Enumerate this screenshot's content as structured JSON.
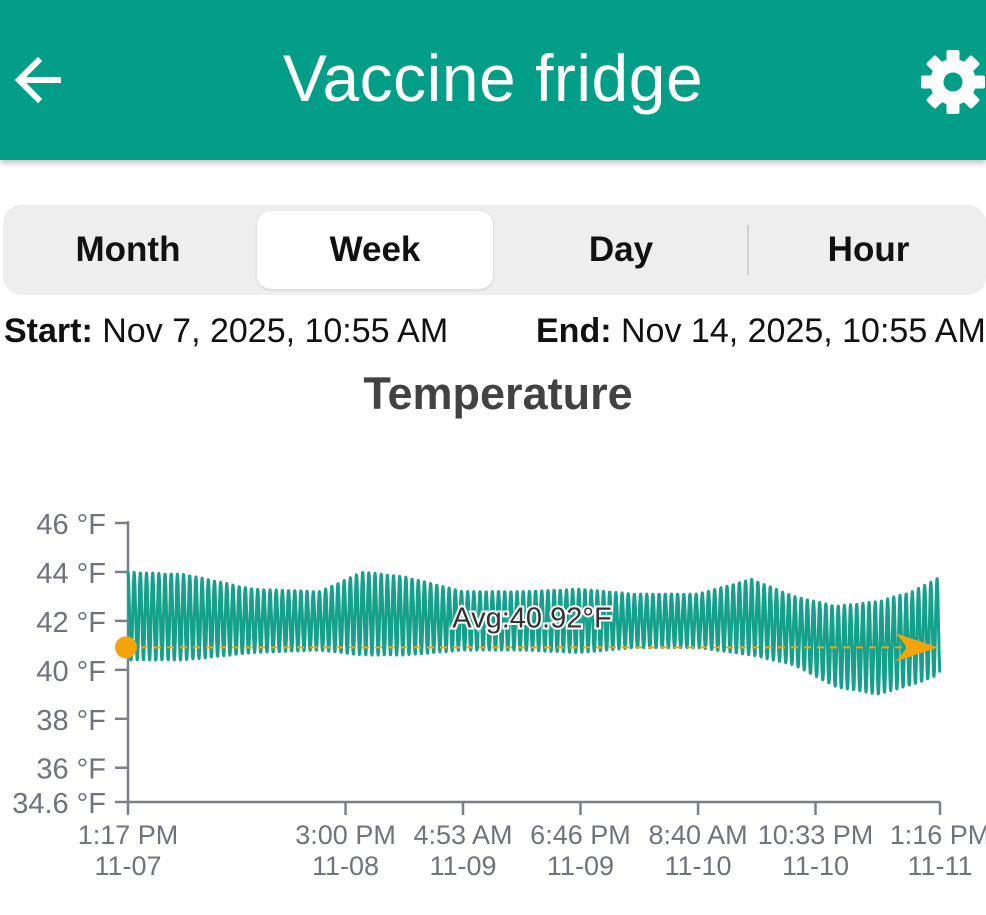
{
  "header": {
    "title": "Vaccine fridge",
    "back_icon": "arrow-left-icon",
    "settings_icon": "gear-icon",
    "background": "#039e87"
  },
  "tabs": [
    {
      "label": "Month",
      "selected": false
    },
    {
      "label": "Week",
      "selected": true
    },
    {
      "label": "Day",
      "selected": false
    },
    {
      "label": "Hour",
      "selected": false
    }
  ],
  "range": {
    "start_label": "Start:",
    "start_value": "Nov 7, 2025, 10:55 AM",
    "end_label": "End:",
    "end_value": "Nov 14, 2025, 10:55 AM"
  },
  "chart_data": {
    "type": "line",
    "title": "Temperature",
    "y_unit": "°F",
    "ylim": [
      34.6,
      46
    ],
    "y_ticks": [
      {
        "value": 46,
        "label": "46 °F"
      },
      {
        "value": 44,
        "label": "44 °F"
      },
      {
        "value": 42,
        "label": "42 °F"
      },
      {
        "value": 40,
        "label": "40 °F"
      },
      {
        "value": 38,
        "label": "38 °F"
      },
      {
        "value": 36,
        "label": "36 °F"
      },
      {
        "value": 34.6,
        "label": "34.6 °F"
      }
    ],
    "x_ticks": [
      {
        "time": "2025-11-07 13:17",
        "line1": "1:17 PM",
        "line2": "11-07"
      },
      {
        "time": "2025-11-08 15:00",
        "line1": "3:00 PM",
        "line2": "11-08"
      },
      {
        "time": "2025-11-09 04:53",
        "line1": "4:53 AM",
        "line2": "11-09"
      },
      {
        "time": "2025-11-09 18:46",
        "line1": "6:46 PM",
        "line2": "11-09"
      },
      {
        "time": "2025-11-10 08:40",
        "line1": "8:40 AM",
        "line2": "11-10"
      },
      {
        "time": "2025-11-10 22:33",
        "line1": "10:33 PM",
        "line2": "11-10"
      },
      {
        "time": "2025-11-11 13:16",
        "line1": "1:16 PM",
        "line2": "11-11"
      }
    ],
    "xlim": [
      "2025-11-07 13:17",
      "2025-11-11 13:16"
    ],
    "average": {
      "value": 40.92,
      "label": "Avg:40.92°F",
      "color": "#f5a20c"
    },
    "series": [
      {
        "color": "#14a08a",
        "cycle_hours": 0.73,
        "trend": [
          {
            "time": "2025-11-07 13:17",
            "high": 44.0,
            "low": 40.4
          },
          {
            "time": "2025-11-07 20:00",
            "high": 43.9,
            "low": 40.4
          },
          {
            "time": "2025-11-08 04:00",
            "high": 43.3,
            "low": 40.7
          },
          {
            "time": "2025-11-08 12:00",
            "high": 43.2,
            "low": 40.8
          },
          {
            "time": "2025-11-08 17:00",
            "high": 44.0,
            "low": 40.6
          },
          {
            "time": "2025-11-08 22:00",
            "high": 43.8,
            "low": 40.6
          },
          {
            "time": "2025-11-09 04:53",
            "high": 43.2,
            "low": 40.8
          },
          {
            "time": "2025-11-09 12:00",
            "high": 43.2,
            "low": 40.8
          },
          {
            "time": "2025-11-09 18:46",
            "high": 43.3,
            "low": 40.7
          },
          {
            "time": "2025-11-10 01:00",
            "high": 43.1,
            "low": 40.9
          },
          {
            "time": "2025-11-10 08:40",
            "high": 43.1,
            "low": 40.9
          },
          {
            "time": "2025-11-10 15:00",
            "high": 43.7,
            "low": 40.6
          },
          {
            "time": "2025-11-10 20:00",
            "high": 43.0,
            "low": 40.2
          },
          {
            "time": "2025-11-11 01:00",
            "high": 42.6,
            "low": 39.3
          },
          {
            "time": "2025-11-11 06:00",
            "high": 42.8,
            "low": 39.0
          },
          {
            "time": "2025-11-11 10:00",
            "high": 43.2,
            "low": 39.4
          },
          {
            "time": "2025-11-11 13:16",
            "high": 43.8,
            "low": 39.8
          }
        ]
      }
    ]
  }
}
